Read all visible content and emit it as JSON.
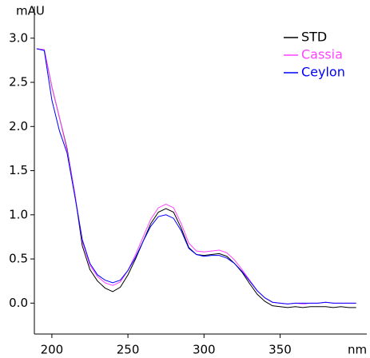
{
  "chart_data": {
    "type": "line",
    "y_label": "mAU",
    "x_label": "nm",
    "x": [
      190,
      195,
      200,
      205,
      210,
      215,
      220,
      225,
      230,
      235,
      240,
      245,
      250,
      255,
      260,
      265,
      270,
      275,
      280,
      285,
      290,
      295,
      300,
      305,
      310,
      315,
      320,
      325,
      330,
      335,
      340,
      345,
      350,
      355,
      360,
      365,
      370,
      375,
      380,
      385,
      390,
      395,
      400
    ],
    "series": [
      {
        "name": "STD",
        "color": "#000000",
        "values": [
          2.88,
          2.87,
          2.45,
          2.1,
          1.75,
          1.25,
          0.65,
          0.38,
          0.25,
          0.17,
          0.13,
          0.18,
          0.32,
          0.5,
          0.7,
          0.9,
          1.03,
          1.07,
          1.03,
          0.85,
          0.63,
          0.55,
          0.54,
          0.55,
          0.56,
          0.53,
          0.45,
          0.35,
          0.22,
          0.1,
          0.02,
          -0.03,
          -0.04,
          -0.05,
          -0.04,
          -0.05,
          -0.04,
          -0.04,
          -0.04,
          -0.05,
          -0.04,
          -0.05,
          -0.05
        ]
      },
      {
        "name": "Cassia",
        "color": "#ff44ff",
        "values": [
          2.88,
          2.87,
          2.45,
          2.1,
          1.73,
          1.25,
          0.7,
          0.43,
          0.3,
          0.23,
          0.2,
          0.24,
          0.37,
          0.55,
          0.75,
          0.95,
          1.08,
          1.12,
          1.08,
          0.9,
          0.68,
          0.59,
          0.58,
          0.59,
          0.6,
          0.57,
          0.49,
          0.38,
          0.26,
          0.14,
          0.06,
          0.01,
          0.0,
          -0.01,
          0.0,
          -0.01,
          0.0,
          0.0,
          0.01,
          0.0,
          0.0,
          0.0,
          0.0
        ]
      },
      {
        "name": "Ceylon",
        "color": "#0000ff",
        "values": [
          2.88,
          2.86,
          2.3,
          1.95,
          1.7,
          1.22,
          0.72,
          0.45,
          0.32,
          0.26,
          0.23,
          0.26,
          0.37,
          0.52,
          0.7,
          0.87,
          0.98,
          1.0,
          0.96,
          0.82,
          0.62,
          0.55,
          0.53,
          0.54,
          0.54,
          0.51,
          0.45,
          0.36,
          0.25,
          0.14,
          0.06,
          0.01,
          0.0,
          -0.01,
          0.0,
          0.0,
          0.0,
          0.0,
          0.01,
          0.0,
          0.0,
          0.0,
          0.0
        ]
      }
    ],
    "xlim": [
      188.5,
      407
    ],
    "ylim": [
      -0.35,
      3.36
    ],
    "xticks": [
      200,
      250,
      300,
      350
    ],
    "yticks": [
      {
        "value": 0,
        "label": "0.0"
      },
      0.5,
      {
        "value": 1,
        "label": "1.0"
      },
      1.5,
      {
        "value": 2,
        "label": "2.0"
      },
      2.5,
      {
        "value": 3,
        "label": "3.0"
      }
    ],
    "legend": "upper-right"
  }
}
